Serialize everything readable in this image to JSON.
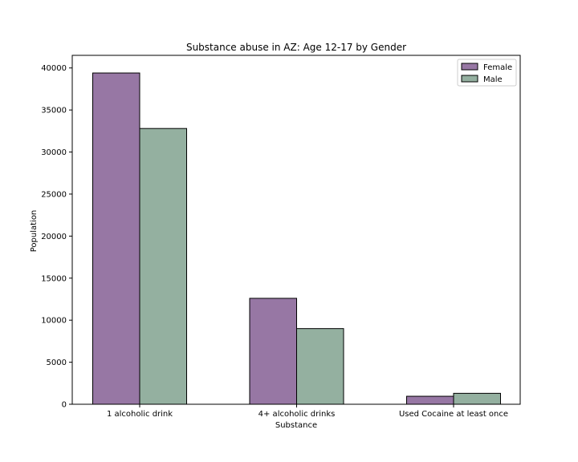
{
  "chart_data": {
    "type": "bar",
    "title": "Substance abuse in AZ: Age 12-17 by Gender",
    "xlabel": "Substance",
    "ylabel": "Population",
    "categories": [
      "1 alcoholic drink",
      "4+ alcoholic drinks",
      "Used Cocaine at least once"
    ],
    "series": [
      {
        "name": "Female",
        "values": [
          39400,
          12600,
          950
        ],
        "color": "#9777a4"
      },
      {
        "name": "Male",
        "values": [
          32800,
          9000,
          1300
        ],
        "color": "#94b0a0"
      }
    ],
    "ylim": [
      0,
      41500
    ],
    "yticks": [
      0,
      5000,
      10000,
      15000,
      20000,
      25000,
      30000,
      35000,
      40000
    ],
    "grid": false,
    "legend_position": "top-right"
  }
}
